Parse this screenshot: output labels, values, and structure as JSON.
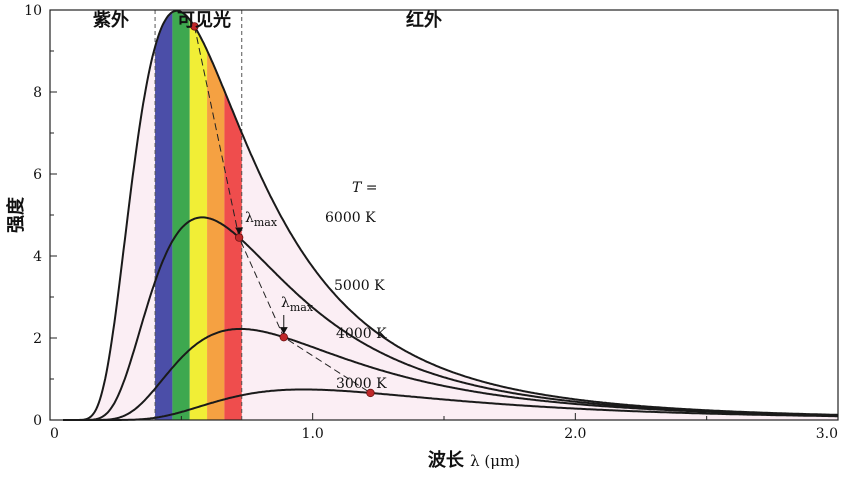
{
  "chart_data": {
    "type": "line",
    "xlabel": {
      "main": "波长",
      "symbol": "λ (μm)"
    },
    "ylabel": "强度",
    "xlim": [
      0,
      3.0
    ],
    "ylim": [
      0,
      10
    ],
    "x_ticks": [
      "0",
      "1.0",
      "2.0",
      "3.0"
    ],
    "y_ticks": [
      "0",
      "2",
      "4",
      "6",
      "8",
      "10"
    ],
    "regions": [
      {
        "label": "紫外",
        "from": 0,
        "to": 0.4
      },
      {
        "label": "可见光",
        "from": 0.4,
        "to": 0.73
      },
      {
        "label": "红外",
        "from": 0.73,
        "to": 3.0
      }
    ],
    "spectrum_colors": [
      "#4b4ea8",
      "#3ea84f",
      "#f1ee36",
      "#f5a142",
      "#ef4d4d"
    ],
    "fill_color": "#fbeef4",
    "marker_color": "#c0282a",
    "t_header": "T =",
    "lambda_label": {
      "symbol": "λ",
      "subscript": "max"
    },
    "series": [
      {
        "name": "6000 K",
        "T": 6000,
        "peak_x": 0.55,
        "peak_y": 9.6
      },
      {
        "name": "5000 K",
        "T": 5000,
        "peak_x": 0.72,
        "peak_y": 4.45
      },
      {
        "name": "4000 K",
        "T": 4000,
        "peak_x": 0.89,
        "peak_y": 2.02
      },
      {
        "name": "3000 K",
        "T": 3000,
        "peak_x": 1.22,
        "peak_y": 0.66
      }
    ]
  }
}
